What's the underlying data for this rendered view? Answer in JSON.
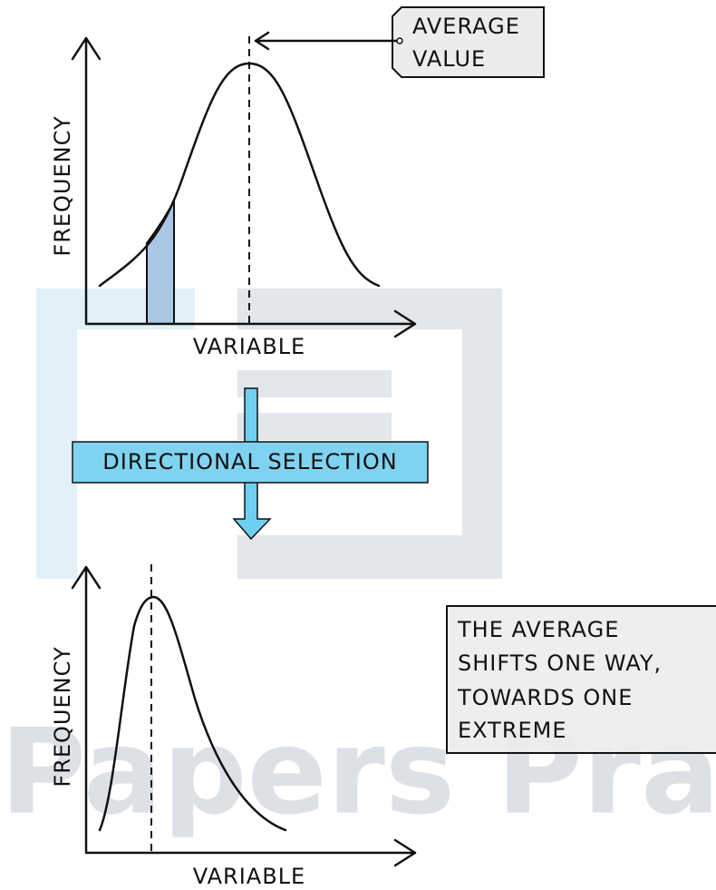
{
  "watermark": "Papers Practi",
  "top_graph": {
    "y_label": "FREQUENCY",
    "x_label": "VARIABLE",
    "callout": [
      "AVERAGE",
      "VALUE"
    ]
  },
  "process": "DIRECTIONAL SELECTION",
  "bottom_graph": {
    "y_label": "FREQUENCY",
    "x_label": "VARIABLE"
  },
  "note": [
    "THE AVERAGE",
    "SHIFTS ONE WAY,",
    "TOWARDS ONE",
    "EXTREME"
  ]
}
